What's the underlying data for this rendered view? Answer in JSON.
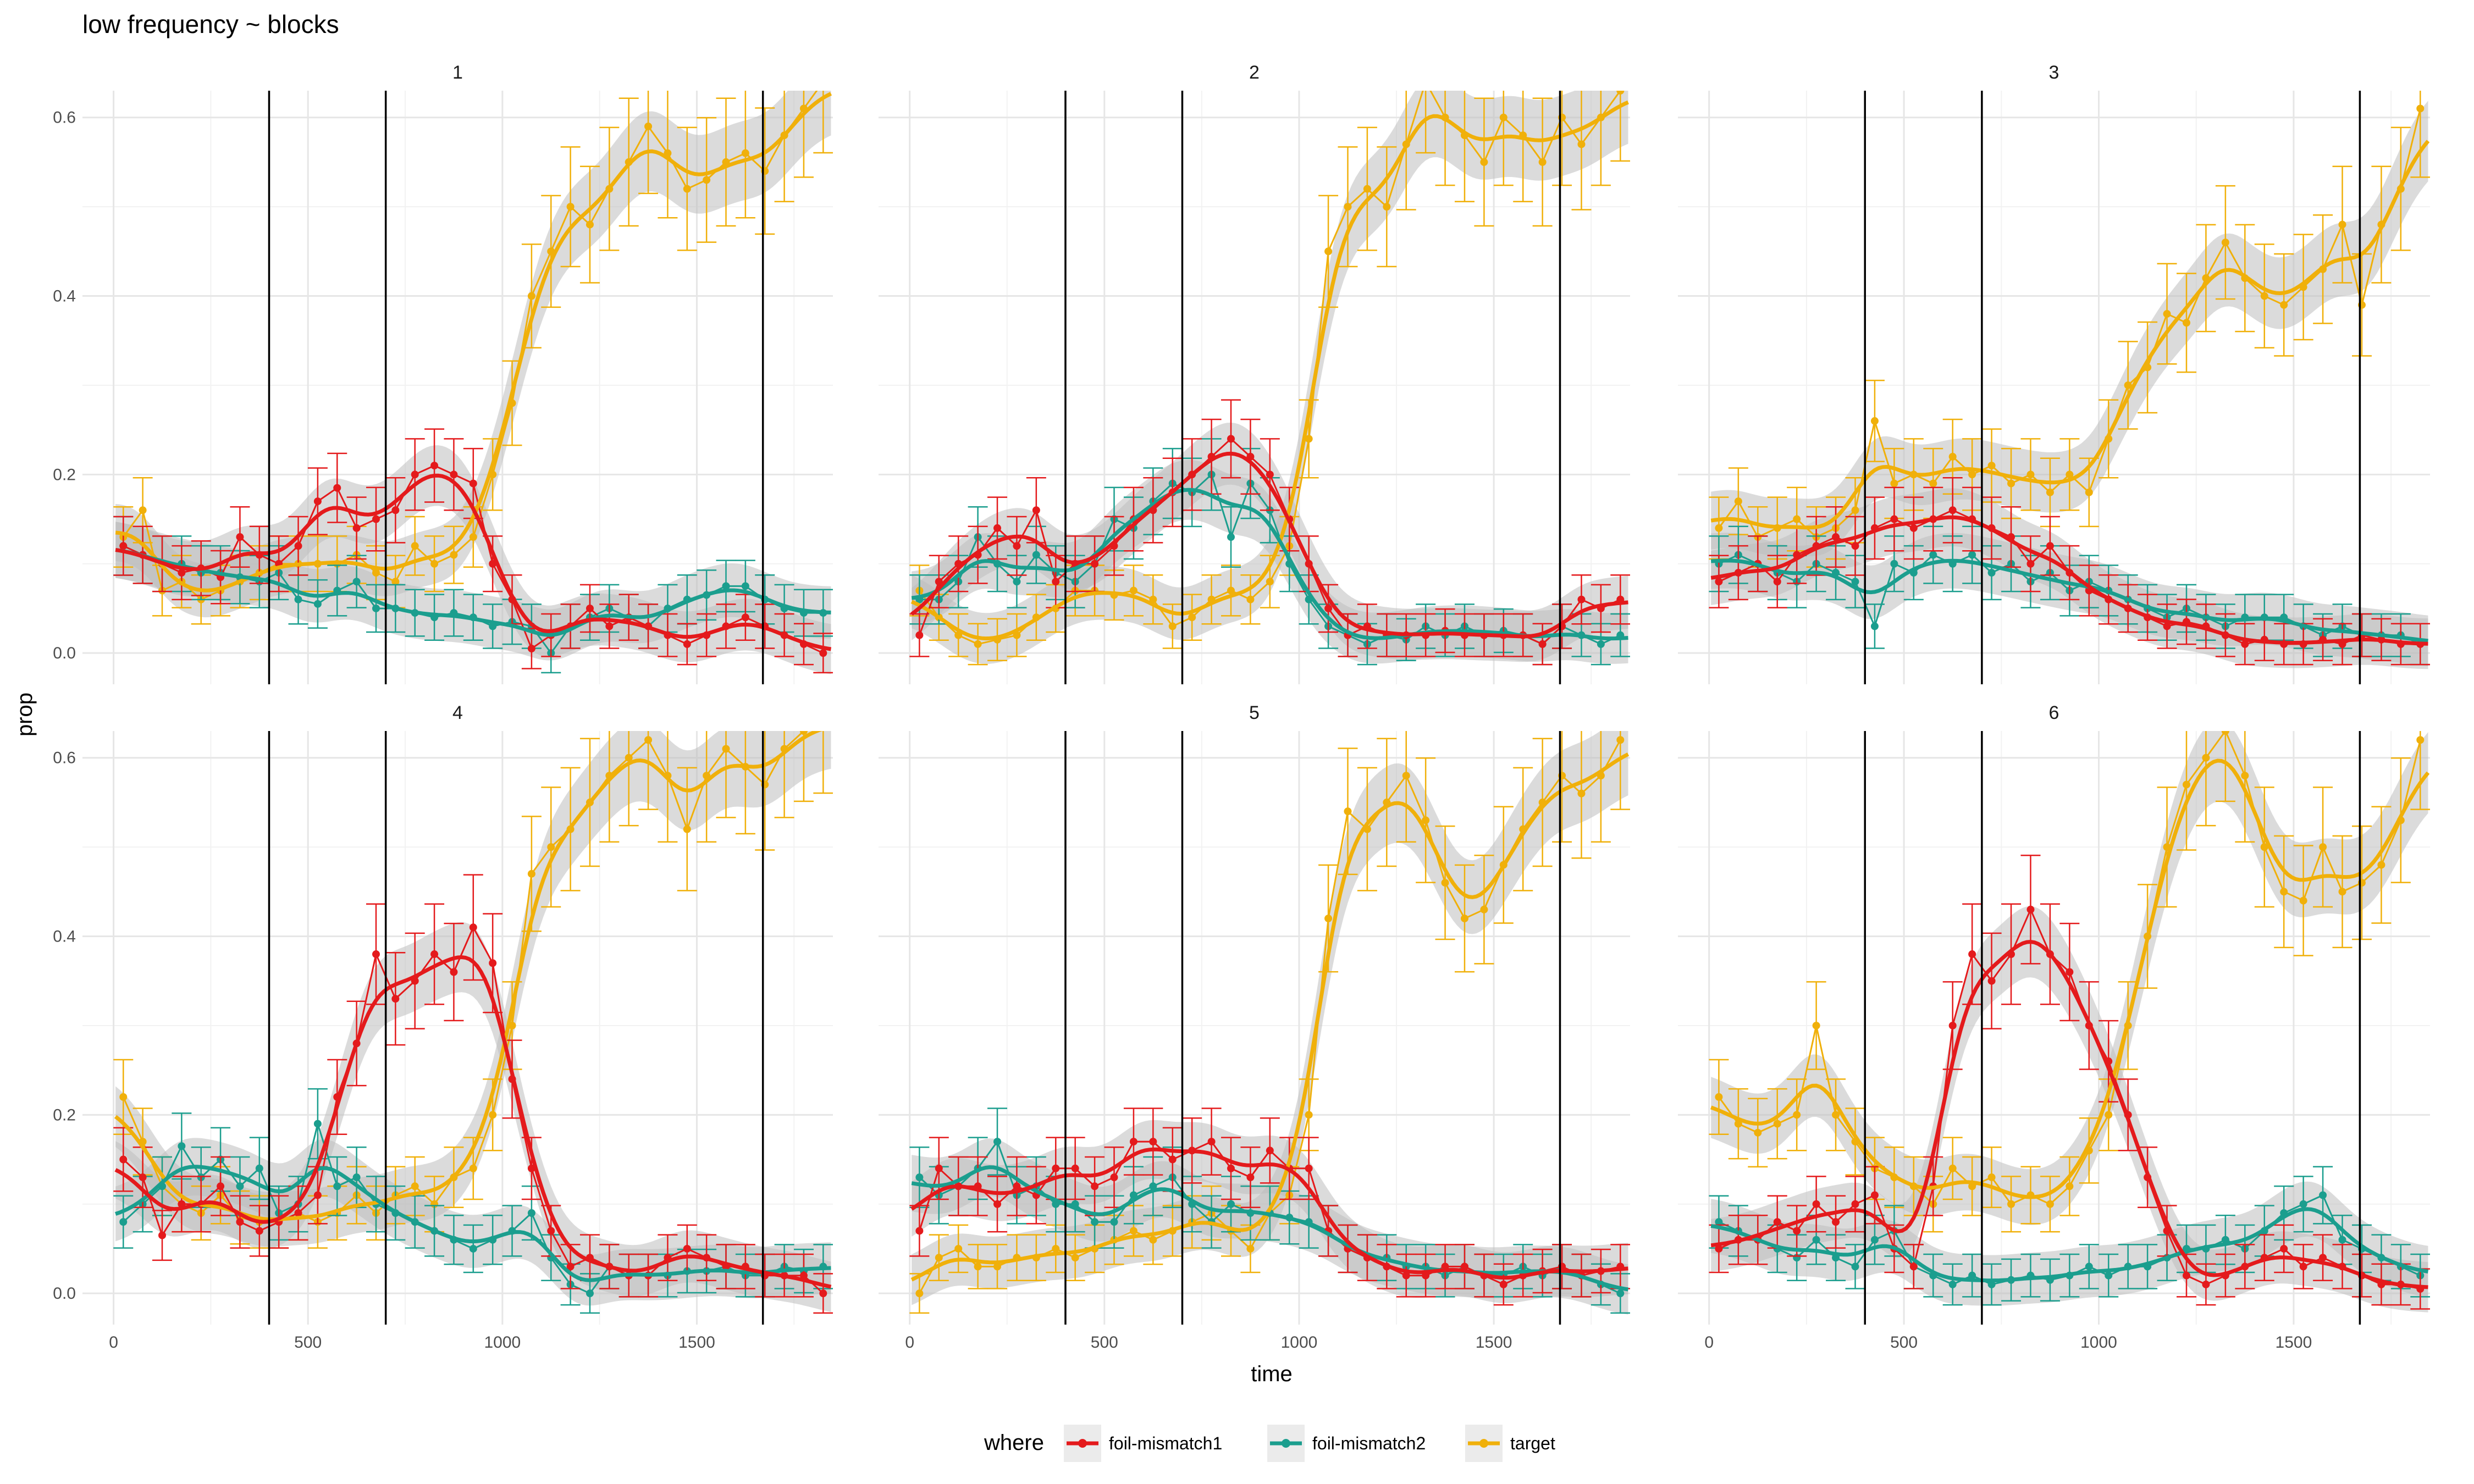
{
  "chart_data": {
    "type": "line",
    "title": "low frequency ~ blocks",
    "xlabel": "time",
    "ylabel": "prop",
    "xlim": [
      -80,
      1850
    ],
    "ylim": [
      -0.035,
      0.63
    ],
    "x_ticks": [
      0,
      500,
      1000,
      1500
    ],
    "y_ticks": [
      0.0,
      0.2,
      0.4,
      0.6
    ],
    "y_tick_labels": [
      "0.0",
      "0.2",
      "0.4",
      "0.6"
    ],
    "vertical_lines": [
      400,
      700,
      1670
    ],
    "grid": true,
    "legend": {
      "title": "where",
      "position": "bottom",
      "entries": [
        "foil-mismatch1",
        "foil-mismatch2",
        "target"
      ]
    },
    "colors": {
      "foil-mismatch1": "#e41a1c",
      "foil-mismatch2": "#1b9e8e",
      "target": "#f0b00a",
      "ribbon": "#bdbdbd",
      "vline": "#000000"
    },
    "x": [
      25,
      75,
      125,
      175,
      225,
      275,
      325,
      375,
      425,
      475,
      525,
      575,
      625,
      675,
      725,
      775,
      825,
      875,
      925,
      975,
      1025,
      1075,
      1125,
      1175,
      1225,
      1275,
      1325,
      1375,
      1425,
      1475,
      1525,
      1575,
      1625,
      1675,
      1725,
      1775,
      1825
    ],
    "panels": [
      {
        "label": "1",
        "series": [
          {
            "name": "foil-mismatch1",
            "values": [
              0.12,
              0.11,
              0.1,
              0.09,
              0.095,
              0.085,
              0.13,
              0.11,
              0.1,
              0.12,
              0.17,
              0.185,
              0.14,
              0.15,
              0.16,
              0.2,
              0.21,
              0.2,
              0.19,
              0.1,
              0.06,
              0.005,
              0.02,
              0.03,
              0.05,
              0.03,
              0.04,
              0.03,
              0.02,
              0.01,
              0.02,
              0.03,
              0.04,
              0.03,
              0.02,
              0.01,
              0.0
            ]
          },
          {
            "name": "foil-mismatch2",
            "values": [
              0.12,
              0.11,
              0.1,
              0.1,
              0.09,
              0.09,
              0.085,
              0.08,
              0.09,
              0.06,
              0.055,
              0.07,
              0.08,
              0.05,
              0.05,
              0.045,
              0.04,
              0.045,
              0.04,
              0.03,
              0.035,
              0.03,
              0.0,
              0.03,
              0.04,
              0.05,
              0.04,
              0.03,
              0.05,
              0.06,
              0.065,
              0.075,
              0.075,
              0.06,
              0.05,
              0.045,
              0.045
            ]
          },
          {
            "name": "target",
            "values": [
              0.13,
              0.16,
              0.07,
              0.08,
              0.06,
              0.07,
              0.08,
              0.09,
              0.1,
              0.1,
              0.1,
              0.1,
              0.11,
              0.09,
              0.08,
              0.12,
              0.1,
              0.11,
              0.13,
              0.2,
              0.28,
              0.4,
              0.45,
              0.5,
              0.48,
              0.52,
              0.55,
              0.59,
              0.56,
              0.52,
              0.53,
              0.55,
              0.56,
              0.54,
              0.58,
              0.61,
              0.64
            ]
          }
        ]
      },
      {
        "label": "2",
        "series": [
          {
            "name": "foil-mismatch1",
            "values": [
              0.02,
              0.08,
              0.1,
              0.11,
              0.14,
              0.12,
              0.16,
              0.08,
              0.1,
              0.1,
              0.12,
              0.15,
              0.16,
              0.18,
              0.2,
              0.22,
              0.24,
              0.22,
              0.2,
              0.15,
              0.1,
              0.05,
              0.02,
              0.03,
              0.02,
              0.02,
              0.02,
              0.025,
              0.02,
              0.02,
              0.02,
              0.02,
              0.01,
              0.03,
              0.06,
              0.05,
              0.06
            ]
          },
          {
            "name": "foil-mismatch2",
            "values": [
              0.06,
              0.06,
              0.08,
              0.13,
              0.1,
              0.08,
              0.11,
              0.09,
              0.08,
              0.1,
              0.15,
              0.14,
              0.17,
              0.19,
              0.18,
              0.2,
              0.13,
              0.19,
              0.16,
              0.1,
              0.06,
              0.03,
              0.02,
              0.01,
              0.02,
              0.015,
              0.03,
              0.02,
              0.03,
              0.02,
              0.025,
              0.02,
              0.01,
              0.03,
              0.02,
              0.01,
              0.02
            ]
          },
          {
            "name": "target",
            "values": [
              0.07,
              0.04,
              0.02,
              0.01,
              0.015,
              0.02,
              0.04,
              0.05,
              0.07,
              0.07,
              0.065,
              0.07,
              0.06,
              0.03,
              0.04,
              0.06,
              0.07,
              0.06,
              0.08,
              0.12,
              0.24,
              0.45,
              0.5,
              0.52,
              0.5,
              0.57,
              0.64,
              0.6,
              0.58,
              0.55,
              0.6,
              0.58,
              0.55,
              0.6,
              0.57,
              0.6,
              0.63
            ]
          }
        ]
      },
      {
        "label": "3",
        "series": [
          {
            "name": "foil-mismatch1",
            "values": [
              0.08,
              0.09,
              0.1,
              0.08,
              0.11,
              0.12,
              0.13,
              0.12,
              0.14,
              0.15,
              0.14,
              0.15,
              0.16,
              0.15,
              0.14,
              0.13,
              0.1,
              0.12,
              0.09,
              0.07,
              0.06,
              0.05,
              0.04,
              0.03,
              0.035,
              0.03,
              0.02,
              0.01,
              0.015,
              0.01,
              0.01,
              0.015,
              0.01,
              0.02,
              0.015,
              0.01,
              0.01
            ]
          },
          {
            "name": "foil-mismatch2",
            "values": [
              0.1,
              0.11,
              0.1,
              0.09,
              0.08,
              0.1,
              0.09,
              0.08,
              0.03,
              0.1,
              0.09,
              0.11,
              0.1,
              0.11,
              0.09,
              0.1,
              0.08,
              0.09,
              0.07,
              0.08,
              0.07,
              0.06,
              0.05,
              0.04,
              0.05,
              0.04,
              0.03,
              0.04,
              0.04,
              0.04,
              0.03,
              0.02,
              0.03,
              0.02,
              0.02,
              0.02,
              0.01
            ]
          },
          {
            "name": "target",
            "values": [
              0.14,
              0.17,
              0.13,
              0.14,
              0.15,
              0.13,
              0.14,
              0.16,
              0.26,
              0.19,
              0.2,
              0.19,
              0.22,
              0.2,
              0.21,
              0.19,
              0.2,
              0.18,
              0.2,
              0.18,
              0.24,
              0.3,
              0.32,
              0.38,
              0.37,
              0.42,
              0.46,
              0.42,
              0.4,
              0.39,
              0.41,
              0.43,
              0.48,
              0.39,
              0.48,
              0.52,
              0.61
            ]
          }
        ]
      },
      {
        "label": "4",
        "series": [
          {
            "name": "foil-mismatch1",
            "values": [
              0.15,
              0.13,
              0.065,
              0.1,
              0.1,
              0.12,
              0.08,
              0.07,
              0.08,
              0.09,
              0.11,
              0.22,
              0.28,
              0.38,
              0.33,
              0.35,
              0.38,
              0.36,
              0.41,
              0.37,
              0.24,
              0.14,
              0.07,
              0.03,
              0.04,
              0.03,
              0.02,
              0.02,
              0.04,
              0.05,
              0.04,
              0.03,
              0.03,
              0.02,
              0.02,
              0.02,
              0.0
            ]
          },
          {
            "name": "foil-mismatch2",
            "values": [
              0.08,
              0.1,
              0.12,
              0.165,
              0.13,
              0.15,
              0.12,
              0.14,
              0.09,
              0.1,
              0.19,
              0.12,
              0.13,
              0.1,
              0.09,
              0.08,
              0.07,
              0.06,
              0.05,
              0.06,
              0.07,
              0.09,
              0.04,
              0.01,
              0.0,
              0.03,
              0.02,
              0.02,
              0.02,
              0.025,
              0.025,
              0.03,
              0.02,
              0.02,
              0.03,
              0.025,
              0.03
            ]
          },
          {
            "name": "target",
            "values": [
              0.22,
              0.17,
              0.12,
              0.1,
              0.09,
              0.11,
              0.085,
              0.08,
              0.08,
              0.09,
              0.08,
              0.09,
              0.11,
              0.09,
              0.11,
              0.12,
              0.1,
              0.13,
              0.14,
              0.2,
              0.3,
              0.47,
              0.5,
              0.52,
              0.55,
              0.58,
              0.6,
              0.62,
              0.58,
              0.52,
              0.58,
              0.61,
              0.59,
              0.57,
              0.61,
              0.63,
              0.64
            ]
          }
        ]
      },
      {
        "label": "5",
        "series": [
          {
            "name": "foil-mismatch1",
            "values": [
              0.07,
              0.14,
              0.12,
              0.12,
              0.1,
              0.12,
              0.11,
              0.14,
              0.14,
              0.12,
              0.13,
              0.17,
              0.17,
              0.15,
              0.16,
              0.17,
              0.14,
              0.13,
              0.16,
              0.14,
              0.14,
              0.07,
              0.05,
              0.04,
              0.03,
              0.02,
              0.02,
              0.03,
              0.03,
              0.02,
              0.01,
              0.02,
              0.025,
              0.03,
              0.02,
              0.025,
              0.03
            ]
          },
          {
            "name": "foil-mismatch2",
            "values": [
              0.13,
              0.11,
              0.12,
              0.14,
              0.17,
              0.11,
              0.12,
              0.1,
              0.1,
              0.08,
              0.08,
              0.11,
              0.12,
              0.13,
              0.1,
              0.08,
              0.1,
              0.09,
              0.09,
              0.085,
              0.08,
              0.07,
              0.05,
              0.04,
              0.04,
              0.03,
              0.03,
              0.02,
              0.03,
              0.02,
              0.02,
              0.03,
              0.02,
              0.03,
              0.02,
              0.01,
              0.0
            ]
          },
          {
            "name": "target",
            "values": [
              0.0,
              0.04,
              0.05,
              0.03,
              0.03,
              0.04,
              0.04,
              0.05,
              0.04,
              0.05,
              0.06,
              0.07,
              0.06,
              0.07,
              0.08,
              0.09,
              0.07,
              0.05,
              0.09,
              0.11,
              0.2,
              0.42,
              0.54,
              0.52,
              0.55,
              0.58,
              0.53,
              0.46,
              0.42,
              0.43,
              0.48,
              0.52,
              0.55,
              0.58,
              0.56,
              0.58,
              0.62
            ]
          }
        ]
      },
      {
        "label": "6",
        "series": [
          {
            "name": "foil-mismatch1",
            "values": [
              0.05,
              0.06,
              0.06,
              0.08,
              0.07,
              0.1,
              0.08,
              0.1,
              0.11,
              0.05,
              0.03,
              0.12,
              0.3,
              0.38,
              0.35,
              0.38,
              0.43,
              0.38,
              0.36,
              0.3,
              0.26,
              0.2,
              0.13,
              0.07,
              0.02,
              0.01,
              0.02,
              0.03,
              0.04,
              0.05,
              0.03,
              0.04,
              0.03,
              0.02,
              0.01,
              0.01,
              0.005
            ]
          },
          {
            "name": "foil-mismatch2",
            "values": [
              0.08,
              0.07,
              0.06,
              0.05,
              0.04,
              0.06,
              0.04,
              0.03,
              0.06,
              0.07,
              0.03,
              0.02,
              0.01,
              0.02,
              0.01,
              0.015,
              0.02,
              0.015,
              0.02,
              0.03,
              0.02,
              0.03,
              0.03,
              0.04,
              0.05,
              0.05,
              0.06,
              0.05,
              0.07,
              0.09,
              0.1,
              0.11,
              0.06,
              0.05,
              0.04,
              0.03,
              0.02
            ]
          },
          {
            "name": "target",
            "values": [
              0.22,
              0.19,
              0.18,
              0.19,
              0.2,
              0.3,
              0.2,
              0.17,
              0.14,
              0.13,
              0.12,
              0.1,
              0.14,
              0.12,
              0.13,
              0.1,
              0.11,
              0.1,
              0.12,
              0.16,
              0.2,
              0.3,
              0.4,
              0.5,
              0.57,
              0.6,
              0.63,
              0.58,
              0.5,
              0.45,
              0.44,
              0.5,
              0.45,
              0.46,
              0.48,
              0.53,
              0.62
            ]
          }
        ]
      }
    ]
  }
}
